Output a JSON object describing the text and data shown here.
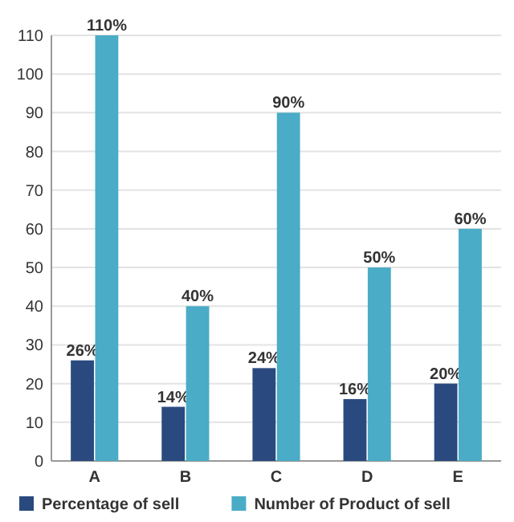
{
  "chart_data": {
    "type": "bar",
    "categories": [
      "A",
      "B",
      "C",
      "D",
      "E"
    ],
    "series": [
      {
        "name": "Percentage of sell",
        "color": "#2a4a7f",
        "values": [
          26,
          14,
          24,
          16,
          20
        ],
        "value_labels": [
          "26%",
          "14%",
          "24%",
          "16%",
          "20%"
        ]
      },
      {
        "name": "Number of Product of sell",
        "color": "#4aacc6",
        "values": [
          110,
          40,
          90,
          50,
          60
        ],
        "value_labels": [
          "110%",
          "40%",
          "90%",
          "50%",
          "60%"
        ]
      }
    ],
    "ylim": [
      0,
      110
    ],
    "yticks": [
      0,
      10,
      20,
      30,
      40,
      50,
      60,
      70,
      80,
      90,
      100,
      110
    ],
    "grid": "y",
    "legend": "bottom"
  }
}
